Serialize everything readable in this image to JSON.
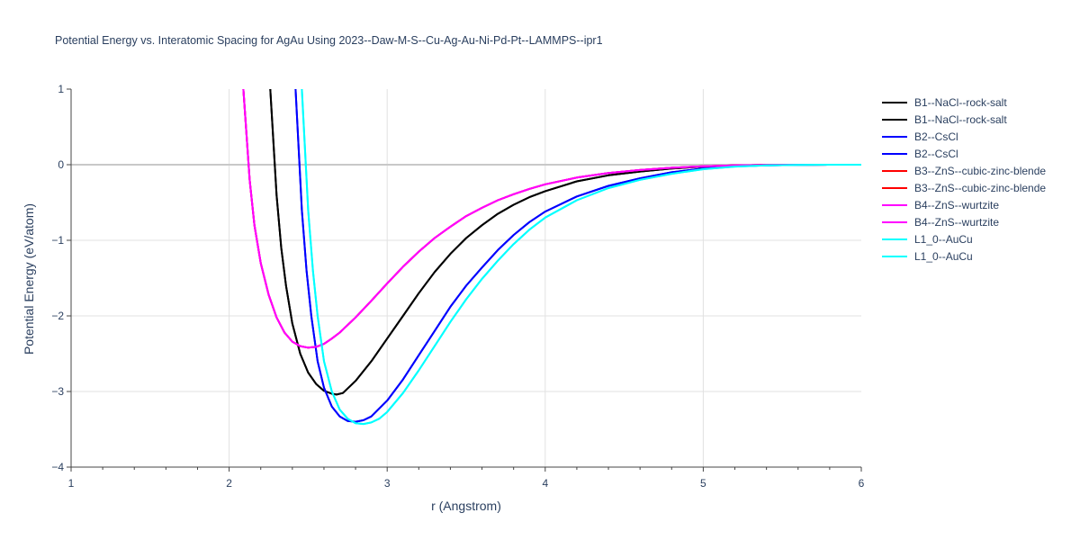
{
  "chart_data": {
    "type": "line",
    "title": "Potential Energy vs. Interatomic Spacing for AgAu Using 2023--Daw-M-S--Cu-Ag-Au-Ni-Pd-Pt--LAMMPS--ipr1",
    "xlabel": "r (Angstrom)",
    "ylabel": "Potential Energy (eV/atom)",
    "xlim": [
      1,
      6
    ],
    "ylim": [
      -4,
      1
    ],
    "x_ticks": [
      "1",
      "2",
      "3",
      "4",
      "5",
      "6"
    ],
    "y_ticks": [
      "1",
      "0",
      "−1",
      "−2",
      "−3",
      "−4"
    ],
    "grid": true,
    "legend_position": "right",
    "series": [
      {
        "name": "B1--NaCl--rock-salt",
        "color": "#000000",
        "x": [
          2.26,
          2.28,
          2.3,
          2.33,
          2.36,
          2.4,
          2.45,
          2.5,
          2.55,
          2.6,
          2.65,
          2.68,
          2.72,
          2.8,
          2.9,
          3.0,
          3.1,
          3.2,
          3.3,
          3.4,
          3.5,
          3.6,
          3.7,
          3.8,
          3.9,
          4.0,
          4.2,
          4.4,
          4.6,
          4.8,
          5.0,
          5.2,
          5.4,
          5.6,
          5.8,
          6.0
        ],
        "y": [
          1.0,
          0.3,
          -0.4,
          -1.1,
          -1.6,
          -2.1,
          -2.5,
          -2.75,
          -2.9,
          -2.99,
          -3.03,
          -3.04,
          -3.02,
          -2.86,
          -2.6,
          -2.3,
          -2.0,
          -1.7,
          -1.42,
          -1.18,
          -0.97,
          -0.8,
          -0.65,
          -0.53,
          -0.43,
          -0.35,
          -0.22,
          -0.14,
          -0.09,
          -0.05,
          -0.025,
          -0.01,
          -0.004,
          -0.001,
          0.0,
          0.0
        ]
      },
      {
        "name": "B1--NaCl--rock-salt",
        "color": "#000000",
        "x": [
          2.26,
          2.28,
          2.3,
          2.33,
          2.36,
          2.4,
          2.45,
          2.5,
          2.55,
          2.6,
          2.65,
          2.68,
          2.72,
          2.8,
          2.9,
          3.0,
          3.1,
          3.2,
          3.3,
          3.4,
          3.5,
          3.6,
          3.7,
          3.8,
          3.9,
          4.0,
          4.2,
          4.4,
          4.6,
          4.8,
          5.0,
          5.2,
          5.4,
          5.6,
          5.8,
          6.0
        ],
        "y": [
          1.0,
          0.3,
          -0.4,
          -1.1,
          -1.6,
          -2.1,
          -2.5,
          -2.75,
          -2.9,
          -2.99,
          -3.03,
          -3.04,
          -3.02,
          -2.86,
          -2.6,
          -2.3,
          -2.0,
          -1.7,
          -1.42,
          -1.18,
          -0.97,
          -0.8,
          -0.65,
          -0.53,
          -0.43,
          -0.35,
          -0.22,
          -0.14,
          -0.09,
          -0.05,
          -0.025,
          -0.01,
          -0.004,
          -0.001,
          0.0,
          0.0
        ]
      },
      {
        "name": "B2--CsCl",
        "color": "#0000ff",
        "x": [
          2.42,
          2.44,
          2.46,
          2.49,
          2.52,
          2.56,
          2.6,
          2.65,
          2.7,
          2.75,
          2.8,
          2.85,
          2.9,
          3.0,
          3.1,
          3.2,
          3.3,
          3.4,
          3.5,
          3.6,
          3.7,
          3.8,
          3.9,
          4.0,
          4.2,
          4.4,
          4.6,
          4.8,
          5.0,
          5.2,
          5.4,
          5.6,
          5.8,
          6.0
        ],
        "y": [
          1.0,
          0.2,
          -0.6,
          -1.4,
          -2.0,
          -2.6,
          -2.95,
          -3.2,
          -3.33,
          -3.39,
          -3.4,
          -3.38,
          -3.33,
          -3.12,
          -2.84,
          -2.52,
          -2.2,
          -1.88,
          -1.6,
          -1.36,
          -1.13,
          -0.93,
          -0.76,
          -0.62,
          -0.42,
          -0.28,
          -0.18,
          -0.1,
          -0.05,
          -0.02,
          -0.008,
          -0.002,
          0.0,
          0.0
        ]
      },
      {
        "name": "B2--CsCl",
        "color": "#0000ff",
        "x": [
          2.42,
          2.44,
          2.46,
          2.49,
          2.52,
          2.56,
          2.6,
          2.65,
          2.7,
          2.75,
          2.8,
          2.85,
          2.9,
          3.0,
          3.1,
          3.2,
          3.3,
          3.4,
          3.5,
          3.6,
          3.7,
          3.8,
          3.9,
          4.0,
          4.2,
          4.4,
          4.6,
          4.8,
          5.0,
          5.2,
          5.4,
          5.6,
          5.8,
          6.0
        ],
        "y": [
          1.0,
          0.2,
          -0.6,
          -1.4,
          -2.0,
          -2.6,
          -2.95,
          -3.2,
          -3.33,
          -3.39,
          -3.4,
          -3.38,
          -3.33,
          -3.12,
          -2.84,
          -2.52,
          -2.2,
          -1.88,
          -1.6,
          -1.36,
          -1.13,
          -0.93,
          -0.76,
          -0.62,
          -0.42,
          -0.28,
          -0.18,
          -0.1,
          -0.05,
          -0.02,
          -0.008,
          -0.002,
          0.0,
          0.0
        ]
      },
      {
        "name": "B3--ZnS--cubic-zinc-blende",
        "color": "#ff0000",
        "x": [
          2.09,
          2.11,
          2.13,
          2.16,
          2.2,
          2.25,
          2.3,
          2.35,
          2.4,
          2.45,
          2.5,
          2.55,
          2.6,
          2.65,
          2.7,
          2.8,
          2.9,
          3.0,
          3.1,
          3.2,
          3.3,
          3.4,
          3.5,
          3.6,
          3.7,
          3.8,
          3.9,
          4.0,
          4.2,
          4.4,
          4.6,
          4.8,
          5.0,
          5.2,
          5.4,
          5.6,
          5.8,
          6.0
        ],
        "y": [
          1.0,
          0.4,
          -0.2,
          -0.8,
          -1.3,
          -1.72,
          -2.02,
          -2.22,
          -2.34,
          -2.4,
          -2.42,
          -2.41,
          -2.37,
          -2.3,
          -2.22,
          -2.02,
          -1.8,
          -1.57,
          -1.35,
          -1.15,
          -0.97,
          -0.82,
          -0.68,
          -0.57,
          -0.47,
          -0.39,
          -0.32,
          -0.26,
          -0.17,
          -0.11,
          -0.07,
          -0.04,
          -0.02,
          -0.008,
          -0.003,
          -0.001,
          0.0,
          0.0
        ]
      },
      {
        "name": "B3--ZnS--cubic-zinc-blende",
        "color": "#ff0000",
        "x": [
          2.09,
          2.11,
          2.13,
          2.16,
          2.2,
          2.25,
          2.3,
          2.35,
          2.4,
          2.45,
          2.5,
          2.55,
          2.6,
          2.65,
          2.7,
          2.8,
          2.9,
          3.0,
          3.1,
          3.2,
          3.3,
          3.4,
          3.5,
          3.6,
          3.7,
          3.8,
          3.9,
          4.0,
          4.2,
          4.4,
          4.6,
          4.8,
          5.0,
          5.2,
          5.4,
          5.6,
          5.8,
          6.0
        ],
        "y": [
          1.0,
          0.4,
          -0.2,
          -0.8,
          -1.3,
          -1.72,
          -2.02,
          -2.22,
          -2.34,
          -2.4,
          -2.42,
          -2.41,
          -2.37,
          -2.3,
          -2.22,
          -2.02,
          -1.8,
          -1.57,
          -1.35,
          -1.15,
          -0.97,
          -0.82,
          -0.68,
          -0.57,
          -0.47,
          -0.39,
          -0.32,
          -0.26,
          -0.17,
          -0.11,
          -0.07,
          -0.04,
          -0.02,
          -0.008,
          -0.003,
          -0.001,
          0.0,
          0.0
        ]
      },
      {
        "name": "B4--ZnS--wurtzite",
        "color": "#ff00ff",
        "x": [
          2.09,
          2.11,
          2.13,
          2.16,
          2.2,
          2.25,
          2.3,
          2.35,
          2.4,
          2.45,
          2.5,
          2.55,
          2.6,
          2.65,
          2.7,
          2.8,
          2.9,
          3.0,
          3.1,
          3.2,
          3.3,
          3.4,
          3.5,
          3.6,
          3.7,
          3.8,
          3.9,
          4.0,
          4.2,
          4.4,
          4.6,
          4.8,
          5.0,
          5.2,
          5.4,
          5.6,
          5.8,
          6.0
        ],
        "y": [
          1.0,
          0.4,
          -0.2,
          -0.8,
          -1.3,
          -1.72,
          -2.02,
          -2.22,
          -2.34,
          -2.4,
          -2.42,
          -2.41,
          -2.37,
          -2.3,
          -2.22,
          -2.02,
          -1.8,
          -1.57,
          -1.35,
          -1.15,
          -0.97,
          -0.82,
          -0.68,
          -0.57,
          -0.47,
          -0.39,
          -0.32,
          -0.26,
          -0.17,
          -0.11,
          -0.07,
          -0.04,
          -0.02,
          -0.008,
          -0.003,
          -0.001,
          0.0,
          0.0
        ]
      },
      {
        "name": "B4--ZnS--wurtzite",
        "color": "#ff00ff",
        "x": [
          2.09,
          2.11,
          2.13,
          2.16,
          2.2,
          2.25,
          2.3,
          2.35,
          2.4,
          2.45,
          2.5,
          2.55,
          2.6,
          2.65,
          2.7,
          2.8,
          2.9,
          3.0,
          3.1,
          3.2,
          3.3,
          3.4,
          3.5,
          3.6,
          3.7,
          3.8,
          3.9,
          4.0,
          4.2,
          4.4,
          4.6,
          4.8,
          5.0,
          5.2,
          5.4,
          5.6,
          5.8,
          6.0
        ],
        "y": [
          1.0,
          0.4,
          -0.2,
          -0.8,
          -1.3,
          -1.72,
          -2.02,
          -2.22,
          -2.34,
          -2.4,
          -2.42,
          -2.41,
          -2.37,
          -2.3,
          -2.22,
          -2.02,
          -1.8,
          -1.57,
          -1.35,
          -1.15,
          -0.97,
          -0.82,
          -0.68,
          -0.57,
          -0.47,
          -0.39,
          -0.32,
          -0.26,
          -0.17,
          -0.11,
          -0.07,
          -0.04,
          -0.02,
          -0.008,
          -0.003,
          -0.001,
          0.0,
          0.0
        ]
      },
      {
        "name": "L1_0--AuCu",
        "color": "#00ffff",
        "x": [
          2.46,
          2.48,
          2.5,
          2.53,
          2.56,
          2.6,
          2.65,
          2.7,
          2.75,
          2.8,
          2.85,
          2.9,
          2.95,
          3.0,
          3.1,
          3.2,
          3.3,
          3.4,
          3.5,
          3.6,
          3.7,
          3.8,
          3.9,
          4.0,
          4.2,
          4.4,
          4.6,
          4.8,
          5.0,
          5.2,
          5.4,
          5.6,
          5.8,
          6.0
        ],
        "y": [
          1.0,
          0.2,
          -0.6,
          -1.4,
          -2.0,
          -2.6,
          -3.0,
          -3.24,
          -3.36,
          -3.42,
          -3.43,
          -3.41,
          -3.36,
          -3.27,
          -3.02,
          -2.72,
          -2.4,
          -2.08,
          -1.78,
          -1.51,
          -1.27,
          -1.05,
          -0.86,
          -0.7,
          -0.47,
          -0.31,
          -0.2,
          -0.12,
          -0.06,
          -0.025,
          -0.01,
          -0.003,
          0.0,
          0.0
        ]
      },
      {
        "name": "L1_0--AuCu",
        "color": "#00ffff",
        "x": [
          2.46,
          2.48,
          2.5,
          2.53,
          2.56,
          2.6,
          2.65,
          2.7,
          2.75,
          2.8,
          2.85,
          2.9,
          2.95,
          3.0,
          3.1,
          3.2,
          3.3,
          3.4,
          3.5,
          3.6,
          3.7,
          3.8,
          3.9,
          4.0,
          4.2,
          4.4,
          4.6,
          4.8,
          5.0,
          5.2,
          5.4,
          5.6,
          5.8,
          6.0
        ],
        "y": [
          1.0,
          0.2,
          -0.6,
          -1.4,
          -2.0,
          -2.6,
          -3.0,
          -3.24,
          -3.36,
          -3.42,
          -3.43,
          -3.41,
          -3.36,
          -3.27,
          -3.02,
          -2.72,
          -2.4,
          -2.08,
          -1.78,
          -1.51,
          -1.27,
          -1.05,
          -0.86,
          -0.7,
          -0.47,
          -0.31,
          -0.2,
          -0.12,
          -0.06,
          -0.025,
          -0.01,
          -0.003,
          0.0,
          0.0
        ]
      }
    ]
  }
}
